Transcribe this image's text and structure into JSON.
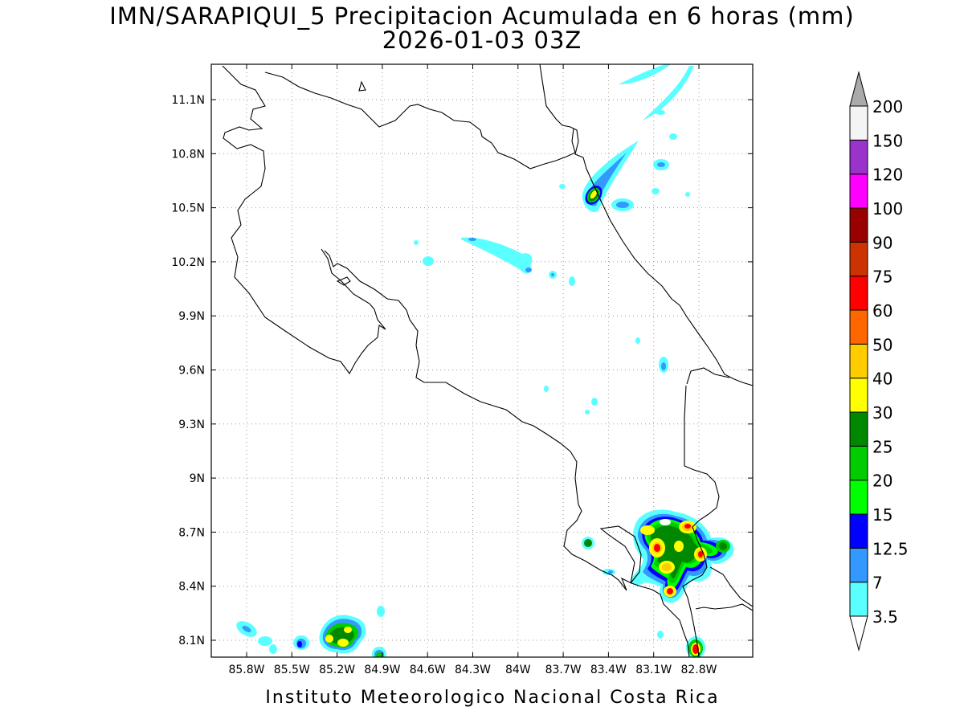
{
  "header": {
    "title": "IMN/SARAPIQUI_5 Precipitacion Acumulada en 6 horas (mm)",
    "subtitle": "2026-01-03 03Z"
  },
  "footer": {
    "credit": "Instituto Meteorologico Nacional Costa Rica"
  },
  "map": {
    "lat_labels": [
      "11.1N",
      "10.8N",
      "10.5N",
      "10.2N",
      "9.9N",
      "9.6N",
      "9.3N",
      "9N",
      "8.7N",
      "8.4N",
      "8.1N"
    ],
    "lon_labels": [
      "85.8W",
      "85.5W",
      "85.2W",
      "84.9W",
      "84.6W",
      "84.3W",
      "84W",
      "83.7W",
      "83.4W",
      "83.1W",
      "82.8W"
    ],
    "grid": true
  },
  "colorbar": {
    "levels": [
      "3.5",
      "7",
      "12.5",
      "15",
      "20",
      "25",
      "30",
      "40",
      "50",
      "60",
      "75",
      "90",
      "100",
      "120",
      "150",
      "200"
    ],
    "colors": [
      "#ffffff",
      "#5affff",
      "#3399ff",
      "#0000ff",
      "#00ff00",
      "#00cc00",
      "#008800",
      "#ffff00",
      "#ffcc00",
      "#ff6600",
      "#ff0000",
      "#cc3300",
      "#990000",
      "#ff00ff",
      "#9933cc",
      "#f4f4f4",
      "#aaaaaa"
    ]
  },
  "precip_colors": {
    "c1": "#5affff",
    "c2": "#3399ff",
    "c3": "#0000ff",
    "c4": "#00ff00",
    "c5": "#00cc00",
    "c6": "#008800",
    "c7": "#ffff00",
    "c8": "#ffcc00",
    "c9": "#ff0000"
  }
}
